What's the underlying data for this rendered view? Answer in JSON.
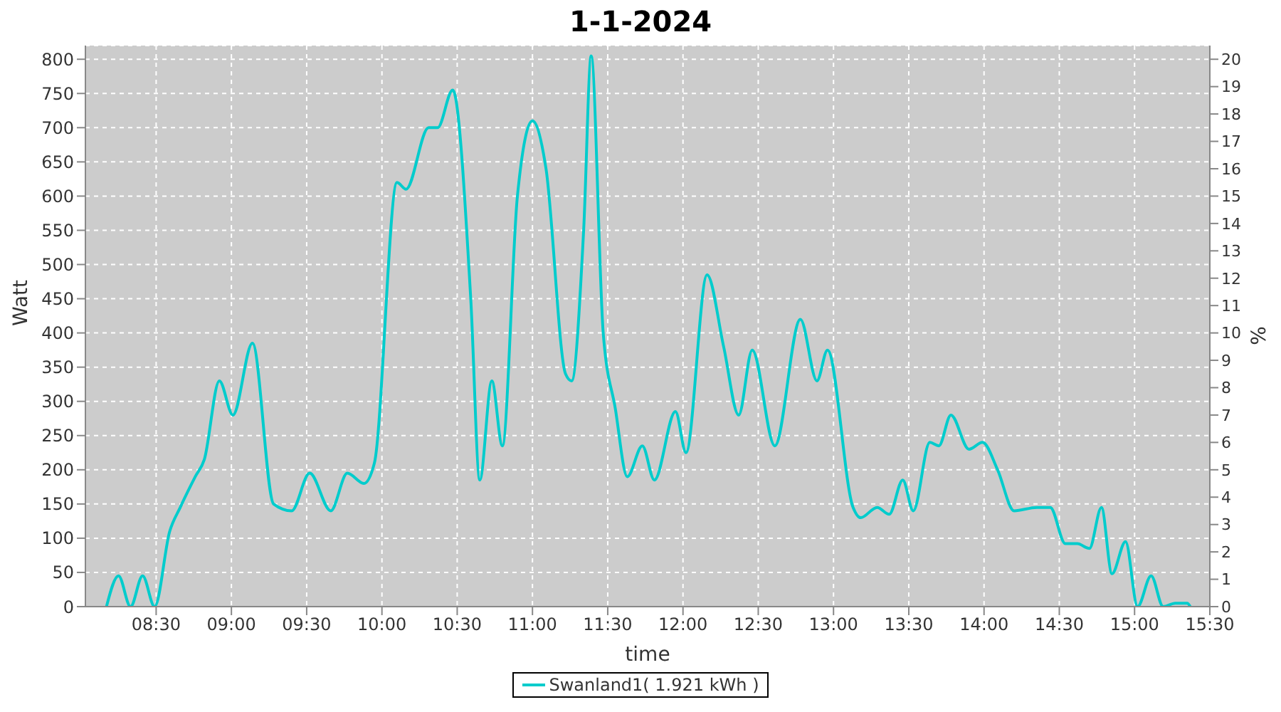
{
  "chart_data": {
    "type": "line",
    "title": "1-1-2024",
    "xlabel": "time",
    "ylabel": "Watt",
    "y2label": "%",
    "series": [
      {
        "name": "Swanland1( 1.921 kWh )",
        "color": "#00cccc",
        "x": [
          8.17,
          8.25,
          8.33,
          8.41,
          8.49,
          8.59,
          8.66,
          8.76,
          8.82,
          8.92,
          9.01,
          9.14,
          9.28,
          9.4,
          9.52,
          9.66,
          9.77,
          9.88,
          9.95,
          10.1,
          10.16,
          10.31,
          10.37,
          10.47,
          10.59,
          10.65,
          10.73,
          10.8,
          10.9,
          11.0,
          11.09,
          11.22,
          11.26,
          11.34,
          11.39,
          11.47,
          11.55,
          11.63,
          11.73,
          11.81,
          11.95,
          12.02,
          12.16,
          12.27,
          12.37,
          12.46,
          12.61,
          12.78,
          12.89,
          12.96,
          13.13,
          13.18,
          13.29,
          13.37,
          13.46,
          13.53,
          13.64,
          13.7,
          13.78,
          13.9,
          13.99,
          14.09,
          14.2,
          14.35,
          14.44,
          14.54,
          14.62,
          14.7,
          14.78,
          14.85,
          14.94,
          15.02,
          15.11,
          15.19,
          15.27,
          15.35,
          15.37
        ],
        "values": [
          0,
          45,
          0,
          45,
          0,
          110,
          145,
          190,
          215,
          330,
          280,
          385,
          150,
          140,
          195,
          140,
          195,
          180,
          210,
          620,
          610,
          700,
          700,
          755,
          450,
          185,
          330,
          235,
          600,
          710,
          640,
          340,
          330,
          550,
          805,
          400,
          290,
          190,
          235,
          185,
          285,
          225,
          485,
          380,
          280,
          375,
          235,
          420,
          330,
          375,
          145,
          130,
          145,
          135,
          185,
          140,
          240,
          235,
          280,
          230,
          240,
          200,
          140,
          145,
          145,
          92,
          92,
          85,
          145,
          48,
          95,
          0,
          45,
          0,
          5,
          5,
          0
        ]
      }
    ],
    "xlim": [
      8.03,
      15.5
    ],
    "xticks": [
      {
        "value": 8.5,
        "label": "08:30"
      },
      {
        "value": 9,
        "label": "09:00"
      },
      {
        "value": 9.5,
        "label": "09:30"
      },
      {
        "value": 10,
        "label": "10:00"
      },
      {
        "value": 10.5,
        "label": "10:30"
      },
      {
        "value": 11,
        "label": "11:00"
      },
      {
        "value": 11.5,
        "label": "11:30"
      },
      {
        "value": 12,
        "label": "12:00"
      },
      {
        "value": 12.5,
        "label": "12:30"
      },
      {
        "value": 13,
        "label": "13:00"
      },
      {
        "value": 13.5,
        "label": "13:30"
      },
      {
        "value": 14,
        "label": "14:00"
      },
      {
        "value": 14.5,
        "label": "14:30"
      },
      {
        "value": 15,
        "label": "15:00"
      },
      {
        "value": 15.5,
        "label": "15:30"
      }
    ],
    "ylim": [
      0,
      820
    ],
    "yticks": [
      0,
      50,
      100,
      150,
      200,
      250,
      300,
      350,
      400,
      450,
      500,
      550,
      600,
      650,
      700,
      750,
      800
    ],
    "y2lim": [
      0,
      20.5
    ],
    "y2ticks": [
      0,
      1,
      2,
      3,
      4,
      5,
      6,
      7,
      8,
      9,
      10,
      11,
      12,
      13,
      14,
      15,
      16,
      17,
      18,
      19,
      20
    ],
    "grid": true,
    "legend": "bottom",
    "marker": "none",
    "line_style": "solid"
  }
}
